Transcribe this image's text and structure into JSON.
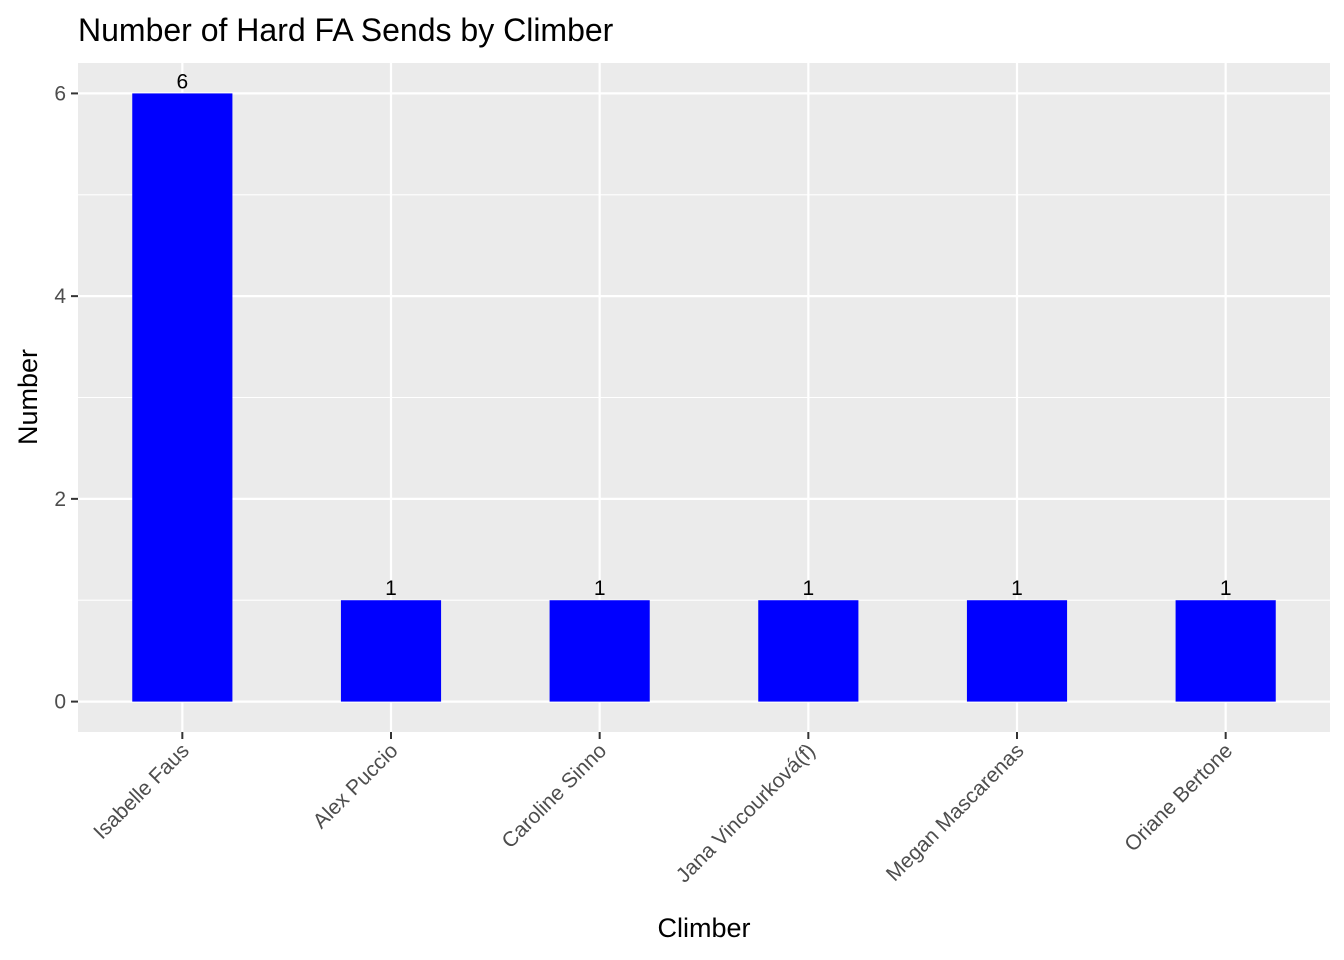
{
  "chart_data": {
    "type": "bar",
    "title": "Number of Hard FA Sends by Climber",
    "xlabel": "Climber",
    "ylabel": "Number",
    "categories": [
      "Isabelle Faus",
      "Alex Puccio",
      "Caroline Sinno",
      "Jana Vincourková(f)",
      "Megan Mascarenas",
      "Oriane Bertone"
    ],
    "values": [
      6,
      1,
      1,
      1,
      1,
      1
    ],
    "data_labels": [
      "6",
      "1",
      "1",
      "1",
      "1",
      "1"
    ],
    "ylim": [
      -0.3,
      6.3
    ],
    "yticks": [
      0,
      2,
      4,
      6
    ],
    "grid": true,
    "legend": "none",
    "colors": {
      "bar": "#0000ff",
      "panel": "#ebebeb",
      "grid": "#ffffff",
      "tick": "#333333"
    }
  }
}
